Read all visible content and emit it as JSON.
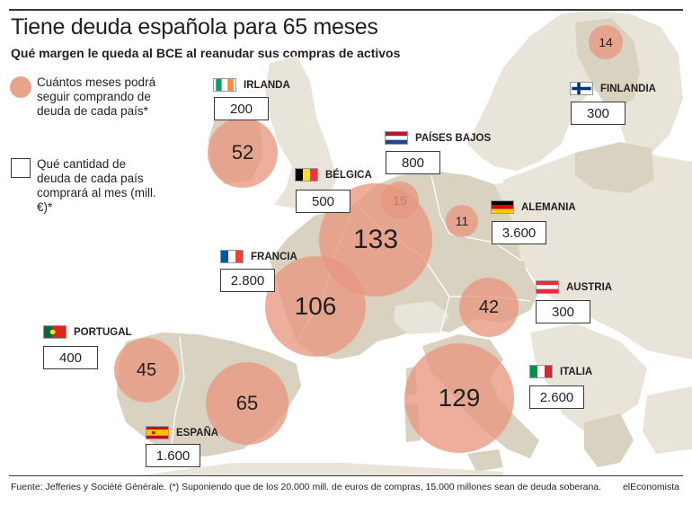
{
  "title": "Tiene deuda española para 65 meses",
  "subtitle": "Qué margen le queda al BCE al reanudar sus compras de activos",
  "legend": {
    "circle_text": "Cuántos meses podrá seguir comprando de deuda de cada país*",
    "box_text": "Qué cantidad de deuda de cada país comprará al mes (mill. €)*"
  },
  "countries": {
    "irlanda": {
      "name": "IRLANDA",
      "months": "52",
      "amount": "200"
    },
    "finlandia": {
      "name": "FINLANDIA",
      "months": "14",
      "amount": "300"
    },
    "paises_bajos": {
      "name": "PAÍSES BAJOS",
      "months": "15",
      "amount": "800"
    },
    "belgica": {
      "name": "BÉLGICA",
      "months": "133",
      "amount": "500"
    },
    "alemania": {
      "name": "ALEMANIA",
      "months": "11",
      "amount": "3.600"
    },
    "francia": {
      "name": "FRANCIA",
      "months": "106",
      "amount": "2.800"
    },
    "austria": {
      "name": "AUSTRIA",
      "months": "42",
      "amount": "300"
    },
    "portugal": {
      "name": "PORTUGAL",
      "months": "45",
      "amount": "400"
    },
    "italia": {
      "name": "ITALIA",
      "months": "129",
      "amount": "2.600"
    },
    "espana": {
      "name": "ESPAÑA",
      "months": "65",
      "amount": "1.600"
    }
  },
  "colors": {
    "bubble": "#e8a38c",
    "land_euro": "#d9d2c1",
    "land_other": "#e8e4d9",
    "sea": "#ffffff",
    "border": "#ffffff"
  },
  "footer": {
    "source": "Fuente: Jefferies y Société Générale. (*) Suponiendo que de los 20.000 mill. de euros de compras, 15.000 millones sean de deuda soberana.",
    "brand": "elEconomista"
  }
}
